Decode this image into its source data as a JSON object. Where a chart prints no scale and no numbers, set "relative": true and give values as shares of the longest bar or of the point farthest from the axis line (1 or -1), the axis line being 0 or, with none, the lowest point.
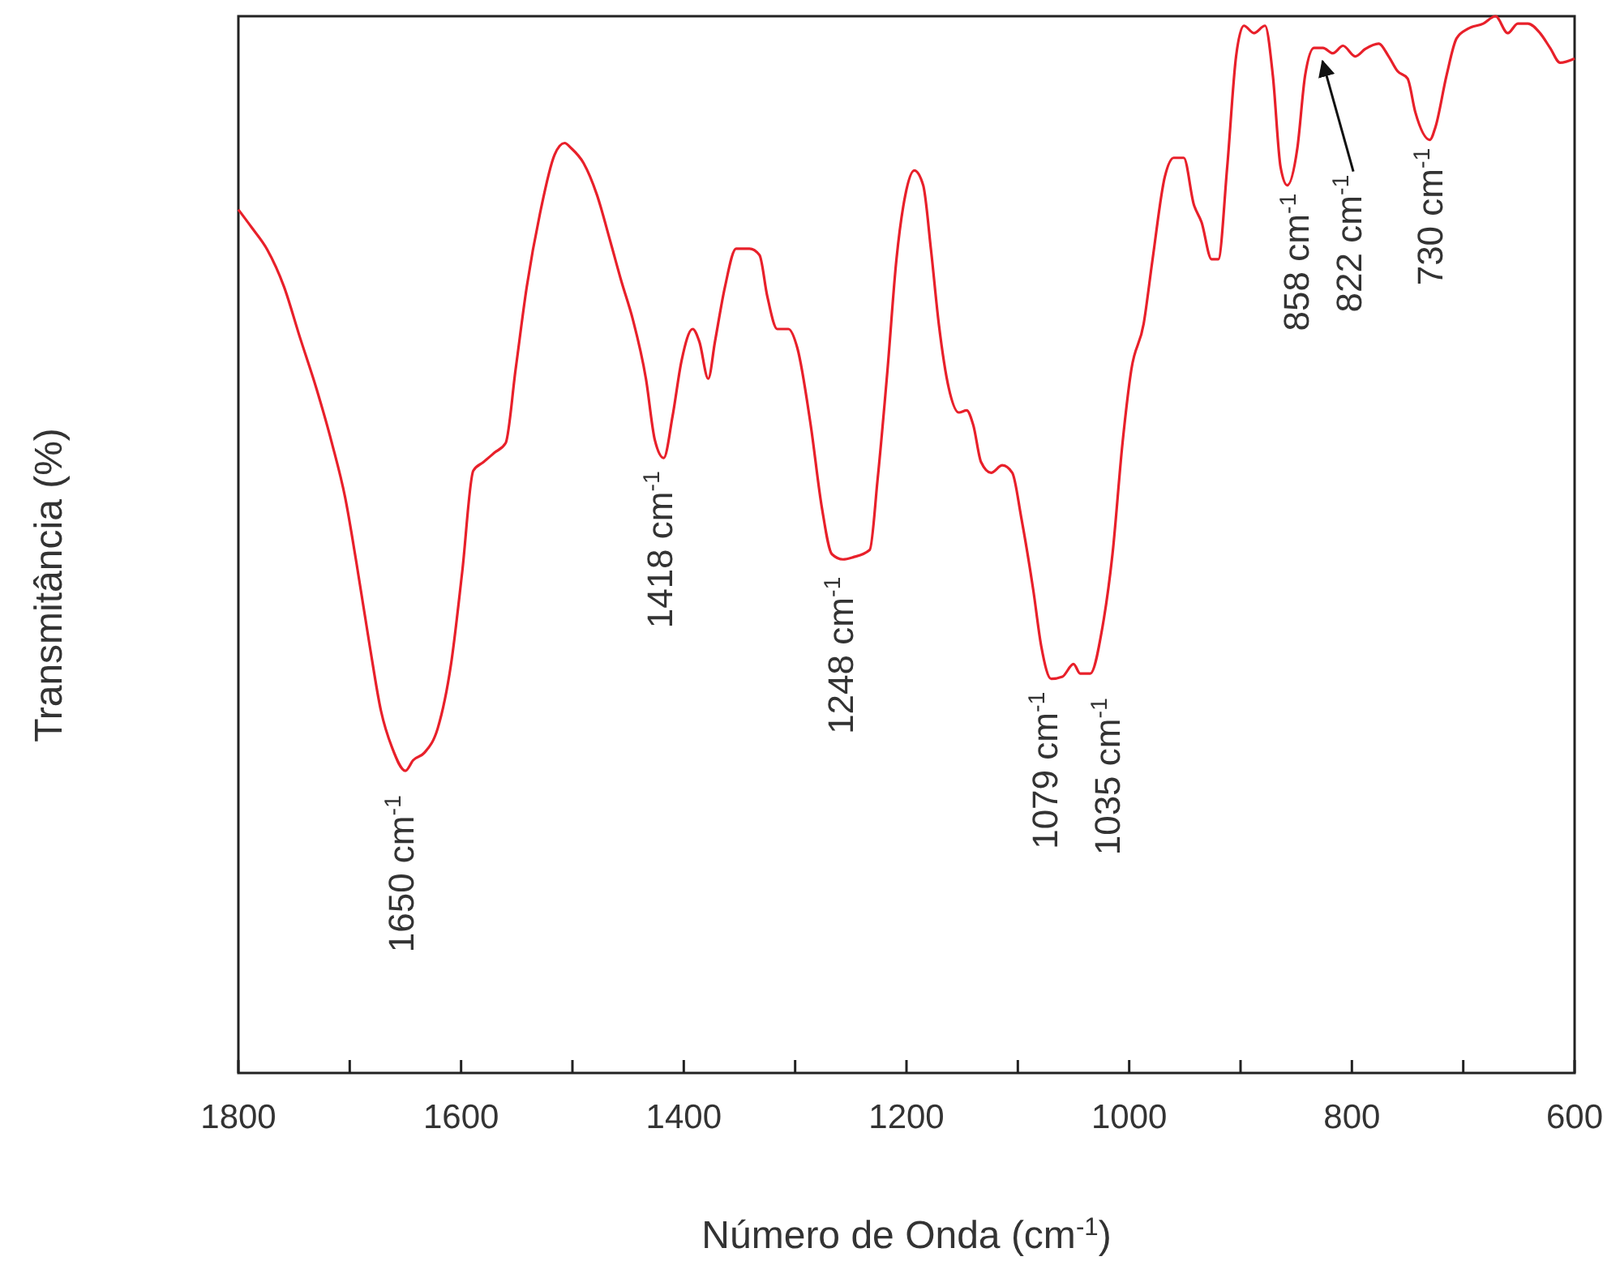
{
  "chart_data": {
    "type": "line",
    "relative": true,
    "xlabel": "Número de Onda (cm$^{-1}$)",
    "ylabel": "Transmitância (%)",
    "xlim": [
      1800,
      600
    ],
    "xticks": [
      1800,
      {
        "value": 1700,
        "label": null
      },
      1600,
      {
        "value": 1500,
        "label": null
      },
      1400,
      {
        "value": 1300,
        "label": null
      },
      1200,
      {
        "value": 1100,
        "label": null
      },
      1000,
      {
        "value": 900,
        "label": null
      },
      800,
      {
        "value": 700,
        "label": null
      },
      600
    ],
    "grid": false,
    "line_style": "solid",
    "series": [
      {
        "color": "#e8202a",
        "x": [
          1800,
          1788,
          1774,
          1759,
          1745,
          1730,
          1716,
          1704,
          1694,
          1682,
          1672,
          1662,
          1650,
          1643,
          1633,
          1621,
          1609,
          1599,
          1589,
          1580,
          1570,
          1560,
          1551,
          1541,
          1529,
          1516,
          1507,
          1501,
          1490,
          1478,
          1466,
          1456,
          1446,
          1434,
          1426,
          1418,
          1410,
          1402,
          1392,
          1386,
          1378,
          1372,
          1363,
          1353,
          1341,
          1332,
          1325,
          1316,
          1306,
          1298,
          1286,
          1276,
          1267,
          1257,
          1248,
          1233,
          1226,
          1217,
          1209,
          1201,
          1193,
          1185,
          1178,
          1171,
          1162,
          1153,
          1146,
          1140,
          1133,
          1124,
          1114,
          1105,
          1097,
          1086,
          1079,
          1070,
          1060,
          1050,
          1044,
          1035,
          1024,
          1015,
          1006,
          998,
          987,
          979,
          968,
          960,
          951,
          942,
          935,
          926,
          920,
          912,
          904,
          897,
          888,
          878,
          871,
          864,
          858,
          849,
          842,
          834,
          826,
          817,
          808,
          797,
          788,
          776,
          767,
          759,
          750,
          743,
          730,
          725,
          715,
          706,
          696,
          682,
          671,
          660,
          651,
          642,
          631,
          622,
          613,
          600
        ],
        "values": [
          0.817,
          0.8,
          0.779,
          0.744,
          0.697,
          0.648,
          0.596,
          0.544,
          0.483,
          0.404,
          0.343,
          0.308,
          0.286,
          0.296,
          0.303,
          0.326,
          0.387,
          0.474,
          0.57,
          0.578,
          0.587,
          0.596,
          0.666,
          0.744,
          0.814,
          0.869,
          0.88,
          0.875,
          0.861,
          0.831,
          0.787,
          0.749,
          0.714,
          0.657,
          0.599,
          0.582,
          0.622,
          0.674,
          0.704,
          0.692,
          0.657,
          0.692,
          0.744,
          0.78,
          0.78,
          0.774,
          0.735,
          0.704,
          0.704,
          0.686,
          0.613,
          0.535,
          0.491,
          0.486,
          0.488,
          0.495,
          0.561,
          0.666,
          0.77,
          0.831,
          0.854,
          0.84,
          0.779,
          0.709,
          0.648,
          0.625,
          0.627,
          0.613,
          0.578,
          0.568,
          0.575,
          0.568,
          0.526,
          0.456,
          0.404,
          0.373,
          0.375,
          0.387,
          0.378,
          0.378,
          0.422,
          0.491,
          0.596,
          0.666,
          0.709,
          0.77,
          0.848,
          0.866,
          0.866,
          0.822,
          0.805,
          0.77,
          0.77,
          0.857,
          0.962,
          0.991,
          0.984,
          0.991,
          0.944,
          0.857,
          0.84,
          0.875,
          0.944,
          0.97,
          0.97,
          0.965,
          0.972,
          0.962,
          0.969,
          0.974,
          0.962,
          0.948,
          0.941,
          0.909,
          0.883,
          0.895,
          0.944,
          0.979,
          0.988,
          0.993,
          1.0,
          0.984,
          0.993,
          0.993,
          0.984,
          0.97,
          0.956,
          0.96
        ]
      }
    ],
    "annotations": [
      {
        "text": "1650 cm$^{-1}$",
        "x": 1650,
        "y": 0.286
      },
      {
        "text": "1418 cm$^{-1}$",
        "x": 1418,
        "y": 0.582
      },
      {
        "text": "1248 cm$^{-1}$",
        "x": 1248,
        "y": 0.488
      },
      {
        "text": "1079 cm$^{-1}$",
        "x": 1079,
        "y": 0.373
      },
      {
        "text": "1035 cm$^{-1}$",
        "x": 1035,
        "y": 0.378
      },
      {
        "text": "858 cm$^{-1}$",
        "x": 858,
        "y": 0.84
      },
      {
        "text": "822 cm$^{-1}$",
        "x": 822,
        "y": 0.965
      },
      {
        "text": "730 cm$^{-1}$",
        "x": 730,
        "y": 0.883
      }
    ]
  }
}
